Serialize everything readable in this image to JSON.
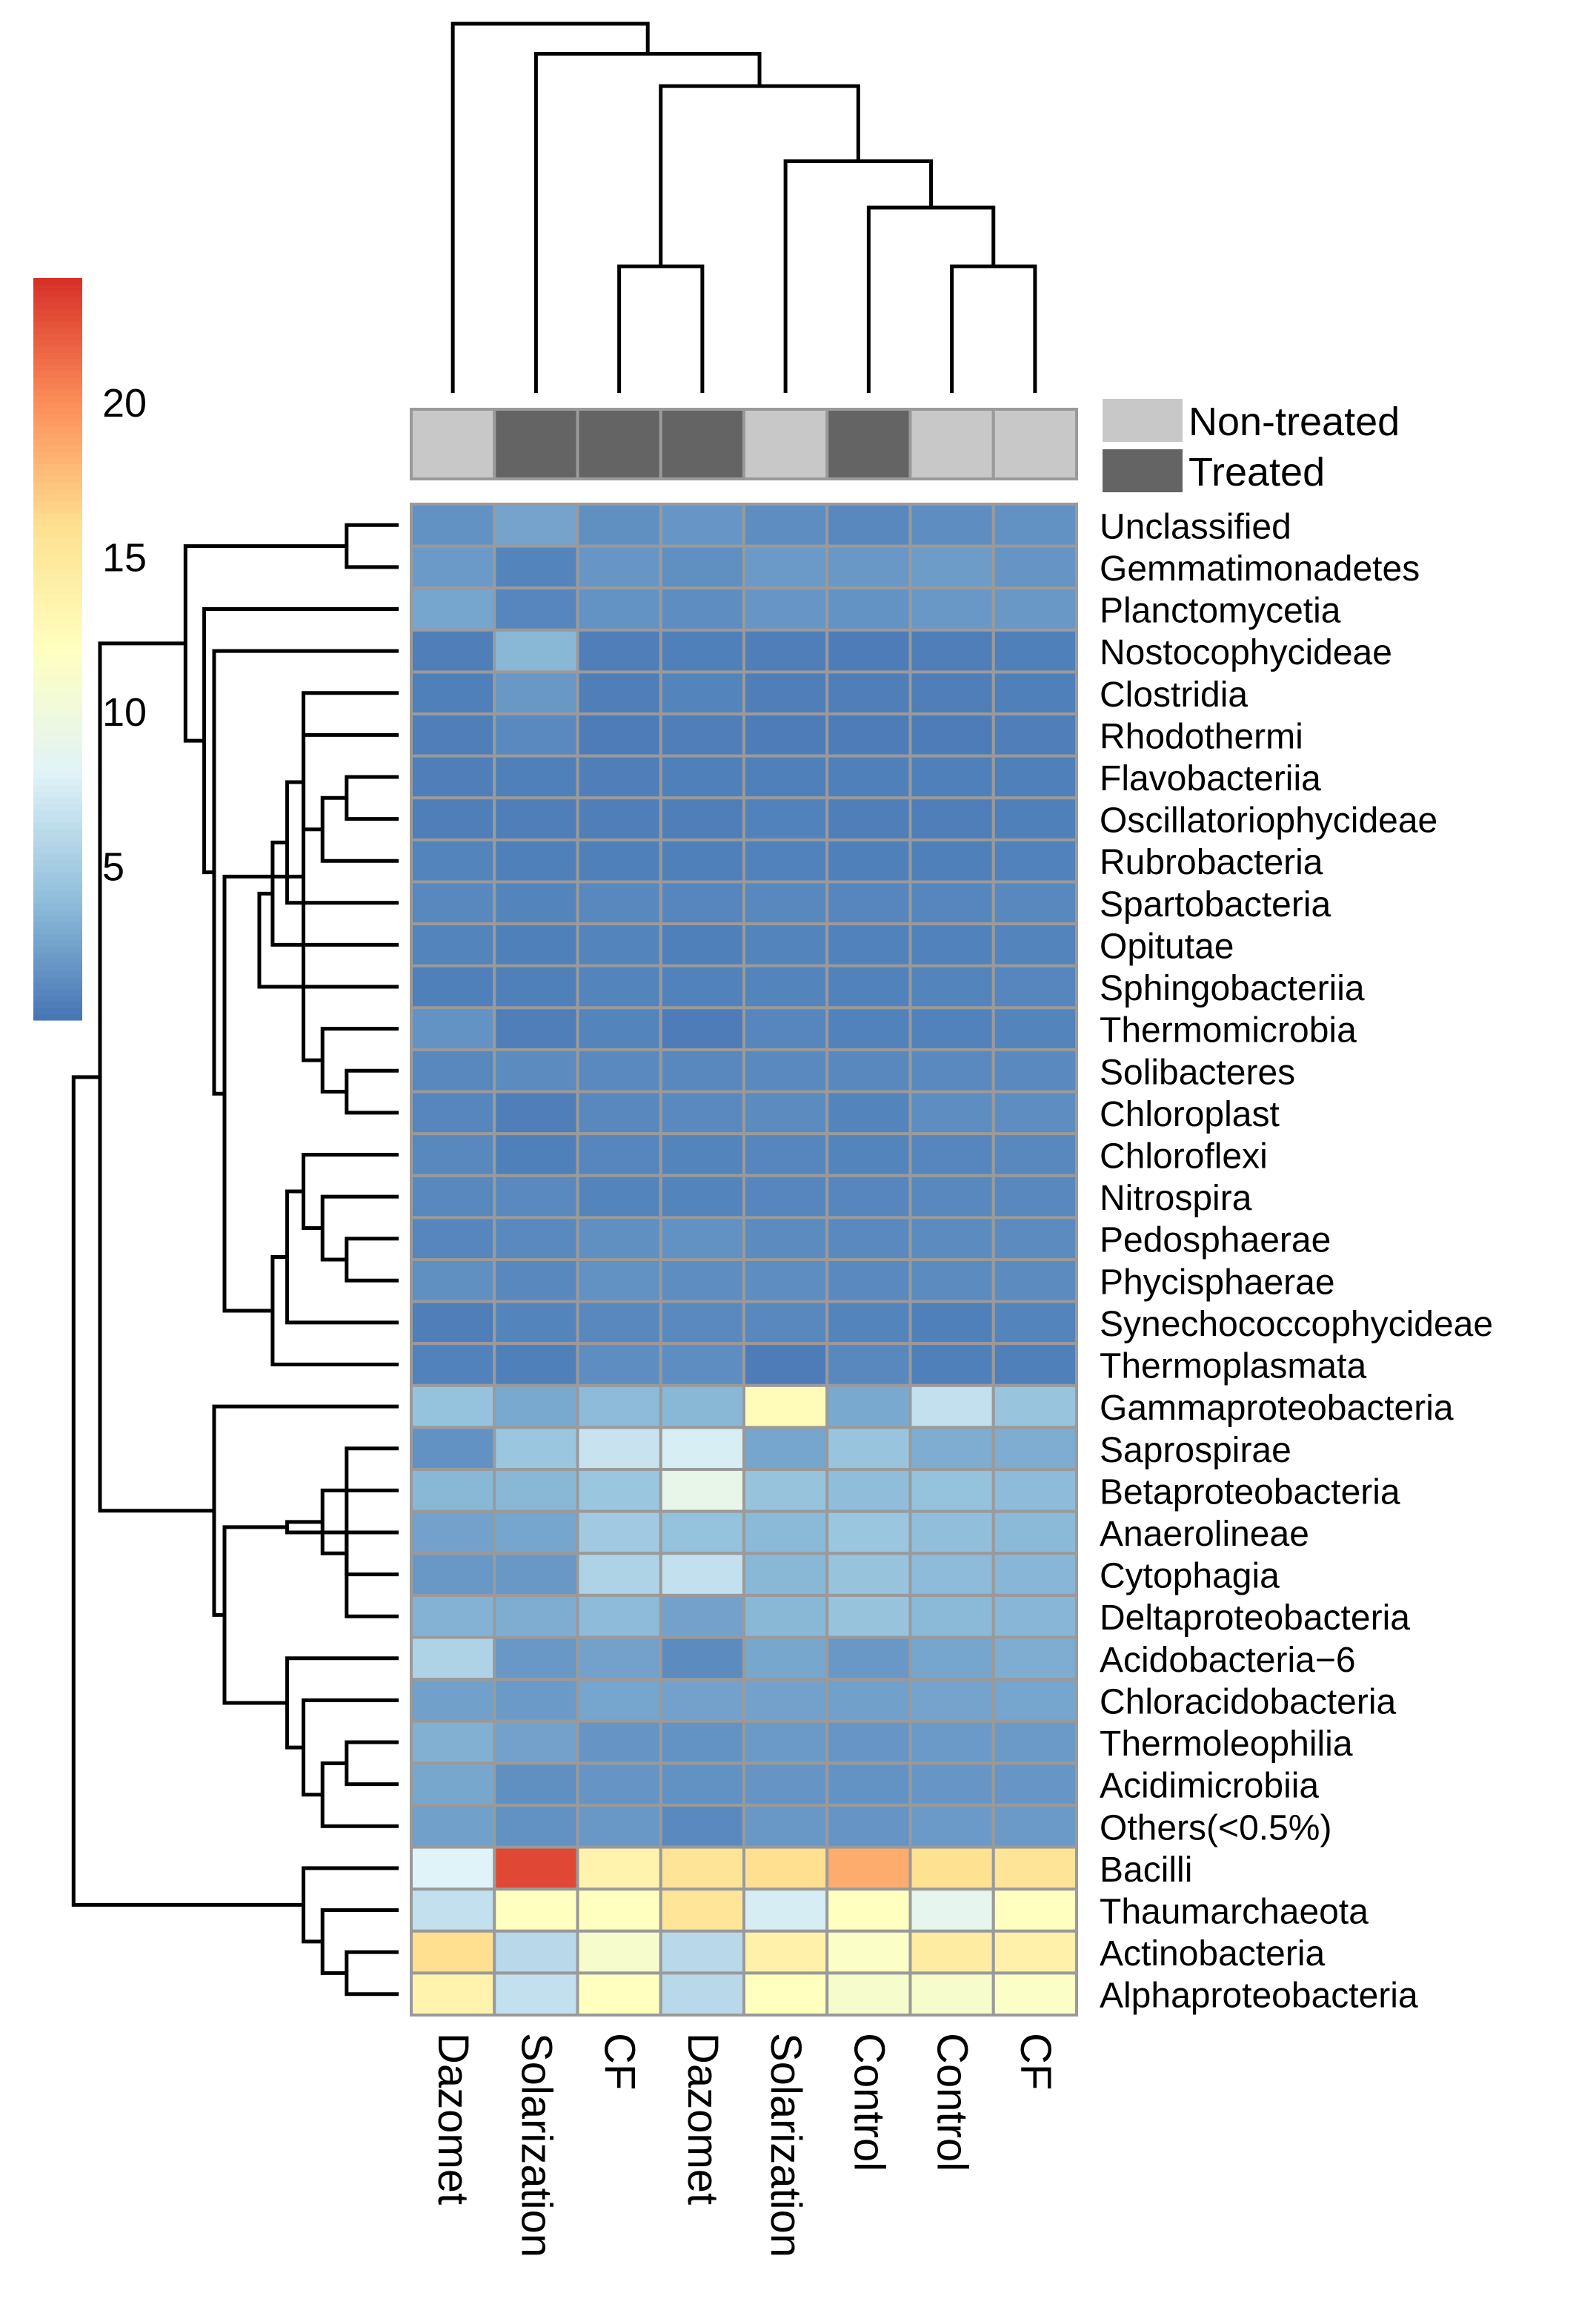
{
  "chart_data": {
    "type": "heatmap",
    "title": "",
    "columns": [
      "Dazomet",
      "Solarization",
      "CF",
      "Dazomet",
      "Solarization",
      "Control",
      "Control",
      "CF"
    ],
    "column_annotation": [
      "Non-treated",
      "Treated",
      "Treated",
      "Treated",
      "Non-treated",
      "Treated",
      "Non-treated",
      "Non-treated"
    ],
    "annotation_legend": [
      {
        "label": "Non-treated",
        "color": "#c8c8c8"
      },
      {
        "label": "Treated",
        "color": "#646464"
      }
    ],
    "rows": [
      "Unclassified",
      "Gemmatimonadetes",
      "Planctomycetia",
      "Nostocophycideae",
      "Clostridia",
      "Rhodothermi",
      "Flavobacteriia",
      "Oscillatoriophycideae",
      "Rubrobacteria",
      "Spartobacteria",
      "Opitutae",
      "Sphingobacteriia",
      "Thermomicrobia",
      "Solibacteres",
      "Chloroplast",
      "Chloroflexi",
      "Nitrospira",
      "Pedosphaerae",
      "Phycisphaerae",
      "Synechococcophycideae",
      "Thermoplasmata",
      "Gammaproteobacteria",
      "Saprospirae",
      "Betaproteobacteria",
      "Anaerolineae",
      "Cytophagia",
      "Deltaproteobacteria",
      "Acidobacteria−6",
      "Chloracidobacteria",
      "Thermoleophilia",
      "Acidimicrobiia",
      "Others(<0.5%)",
      "Bacilli",
      "Thaumarchaeota",
      "Actinobacteria",
      "Alphaproteobacteria"
    ],
    "values": [
      [
        1.5,
        2.5,
        1.4,
        1.8,
        1.3,
        1.0,
        1.3,
        1.5
      ],
      [
        2.0,
        0.8,
        1.8,
        1.4,
        2.0,
        1.9,
        2.1,
        1.7
      ],
      [
        2.6,
        0.9,
        1.6,
        1.3,
        1.8,
        1.6,
        1.9,
        1.9
      ],
      [
        0.5,
        3.6,
        0.5,
        0.6,
        0.5,
        0.4,
        0.5,
        0.6
      ],
      [
        0.6,
        1.9,
        0.5,
        0.8,
        0.5,
        0.5,
        0.5,
        0.6
      ],
      [
        0.5,
        1.1,
        0.4,
        0.5,
        0.4,
        0.4,
        0.4,
        0.5
      ],
      [
        0.5,
        0.6,
        0.5,
        0.6,
        0.6,
        0.6,
        0.6,
        0.6
      ],
      [
        0.5,
        0.5,
        0.5,
        0.5,
        0.7,
        0.5,
        0.5,
        0.6
      ],
      [
        0.8,
        0.6,
        0.6,
        0.6,
        0.7,
        0.6,
        0.6,
        0.7
      ],
      [
        1.0,
        0.8,
        1.0,
        0.9,
        1.0,
        0.9,
        0.9,
        1.0
      ],
      [
        0.8,
        0.6,
        0.8,
        0.6,
        0.8,
        0.7,
        0.7,
        0.8
      ],
      [
        0.6,
        0.6,
        0.8,
        0.7,
        0.8,
        0.7,
        0.8,
        0.9
      ],
      [
        1.6,
        0.5,
        0.8,
        0.4,
        0.9,
        0.7,
        0.7,
        0.8
      ],
      [
        1.0,
        1.2,
        1.1,
        1.0,
        1.1,
        1.0,
        1.1,
        1.1
      ],
      [
        0.9,
        0.5,
        1.0,
        1.1,
        1.2,
        0.8,
        1.3,
        1.3
      ],
      [
        1.0,
        0.6,
        0.9,
        0.8,
        0.9,
        0.8,
        0.9,
        1.0
      ],
      [
        1.0,
        1.1,
        0.8,
        0.8,
        0.9,
        0.9,
        1.0,
        1.0
      ],
      [
        0.9,
        1.1,
        1.4,
        1.5,
        1.2,
        1.1,
        1.2,
        1.2
      ],
      [
        1.4,
        1.0,
        1.5,
        1.3,
        1.3,
        1.1,
        1.2,
        1.2
      ],
      [
        0.5,
        0.8,
        1.0,
        1.1,
        1.0,
        0.8,
        0.6,
        0.8
      ],
      [
        0.7,
        0.6,
        1.3,
        1.3,
        0.4,
        1.0,
        0.6,
        0.6
      ],
      [
        4.2,
        2.8,
        3.8,
        3.6,
        12.5,
        2.8,
        6.5,
        4.4
      ],
      [
        1.5,
        4.5,
        6.8,
        7.6,
        2.6,
        4.4,
        3.0,
        3.0
      ],
      [
        3.6,
        3.6,
        4.5,
        9.0,
        4.3,
        3.9,
        4.2,
        3.8
      ],
      [
        2.4,
        2.6,
        4.8,
        4.2,
        3.7,
        4.5,
        4.0,
        3.7
      ],
      [
        1.9,
        1.9,
        5.5,
        6.5,
        3.6,
        4.3,
        3.8,
        3.5
      ],
      [
        3.3,
        3.0,
        3.8,
        2.4,
        3.6,
        4.3,
        3.7,
        3.5
      ],
      [
        5.5,
        1.9,
        2.4,
        1.2,
        2.7,
        1.9,
        2.6,
        3.0
      ],
      [
        2.3,
        2.0,
        2.6,
        2.4,
        2.4,
        2.3,
        2.5,
        2.6
      ],
      [
        3.2,
        2.4,
        1.7,
        1.6,
        2.0,
        1.8,
        2.0,
        2.0
      ],
      [
        2.7,
        1.4,
        1.7,
        1.5,
        1.7,
        1.6,
        1.8,
        1.8
      ],
      [
        2.3,
        1.5,
        1.9,
        1.1,
        1.9,
        1.7,
        2.0,
        2.0
      ],
      [
        8.0,
        23.0,
        13.5,
        15.5,
        16.0,
        18.5,
        15.8,
        15.5
      ],
      [
        6.5,
        12.0,
        12.0,
        15.3,
        7.5,
        12.0,
        8.8,
        12.0
      ],
      [
        16.0,
        6.0,
        11.0,
        6.0,
        13.8,
        11.5,
        14.5,
        13.8
      ],
      [
        13.5,
        6.5,
        12.0,
        6.0,
        12.0,
        11.0,
        11.0,
        11.5
      ]
    ],
    "color_scale": {
      "min": 0,
      "max": 24,
      "colors": [
        "#4575b4",
        "#91bfdb",
        "#e0f3f8",
        "#ffffbf",
        "#fee090",
        "#fc8d59",
        "#d73027"
      ],
      "ticks": [
        5,
        10,
        15,
        20
      ],
      "legend_position": "top-left"
    },
    "column_dendrogram": {
      "merges": [
        [
          7,
          8
        ],
        [
          3,
          4
        ],
        [
          -1,
          6
        ],
        [
          5,
          -3
        ],
        [
          -2,
          -4
        ],
        [
          2,
          -5
        ],
        [
          1,
          -6
        ]
      ]
    },
    "row_dendrogram": {
      "merges": [
        [
          7,
          8
        ],
        [
          -1,
          9
        ],
        [
          -2,
          6
        ],
        [
          -3,
          10
        ],
        [
          -4,
          11
        ],
        [
          -5,
          12
        ],
        [
          18,
          19
        ],
        [
          17,
          -7
        ],
        [
          16,
          -8
        ],
        [
          -9,
          20
        ],
        [
          -10,
          21
        ],
        [
          14,
          15
        ],
        [
          -12,
          13
        ],
        [
          -13,
          5
        ],
        [
          -14,
          -11
        ],
        [
          -15,
          4
        ],
        [
          -16,
          3
        ],
        [
          2,
          1
        ],
        [
          -18,
          -17
        ],
        [
          25,
          26
        ],
        [
          24,
          -20
        ],
        [
          23,
          27
        ],
        [
          -22,
          -21
        ],
        [
          30,
          31
        ],
        [
          32,
          -24
        ],
        [
          29,
          -25
        ],
        [
          28,
          -26
        ],
        [
          -27,
          -23
        ],
        [
          22,
          -28
        ],
        [
          35,
          36
        ],
        [
          34,
          -30
        ],
        [
          33,
          -31
        ],
        [
          -19,
          -29
        ],
        [
          -33,
          -32
        ]
      ]
    }
  }
}
